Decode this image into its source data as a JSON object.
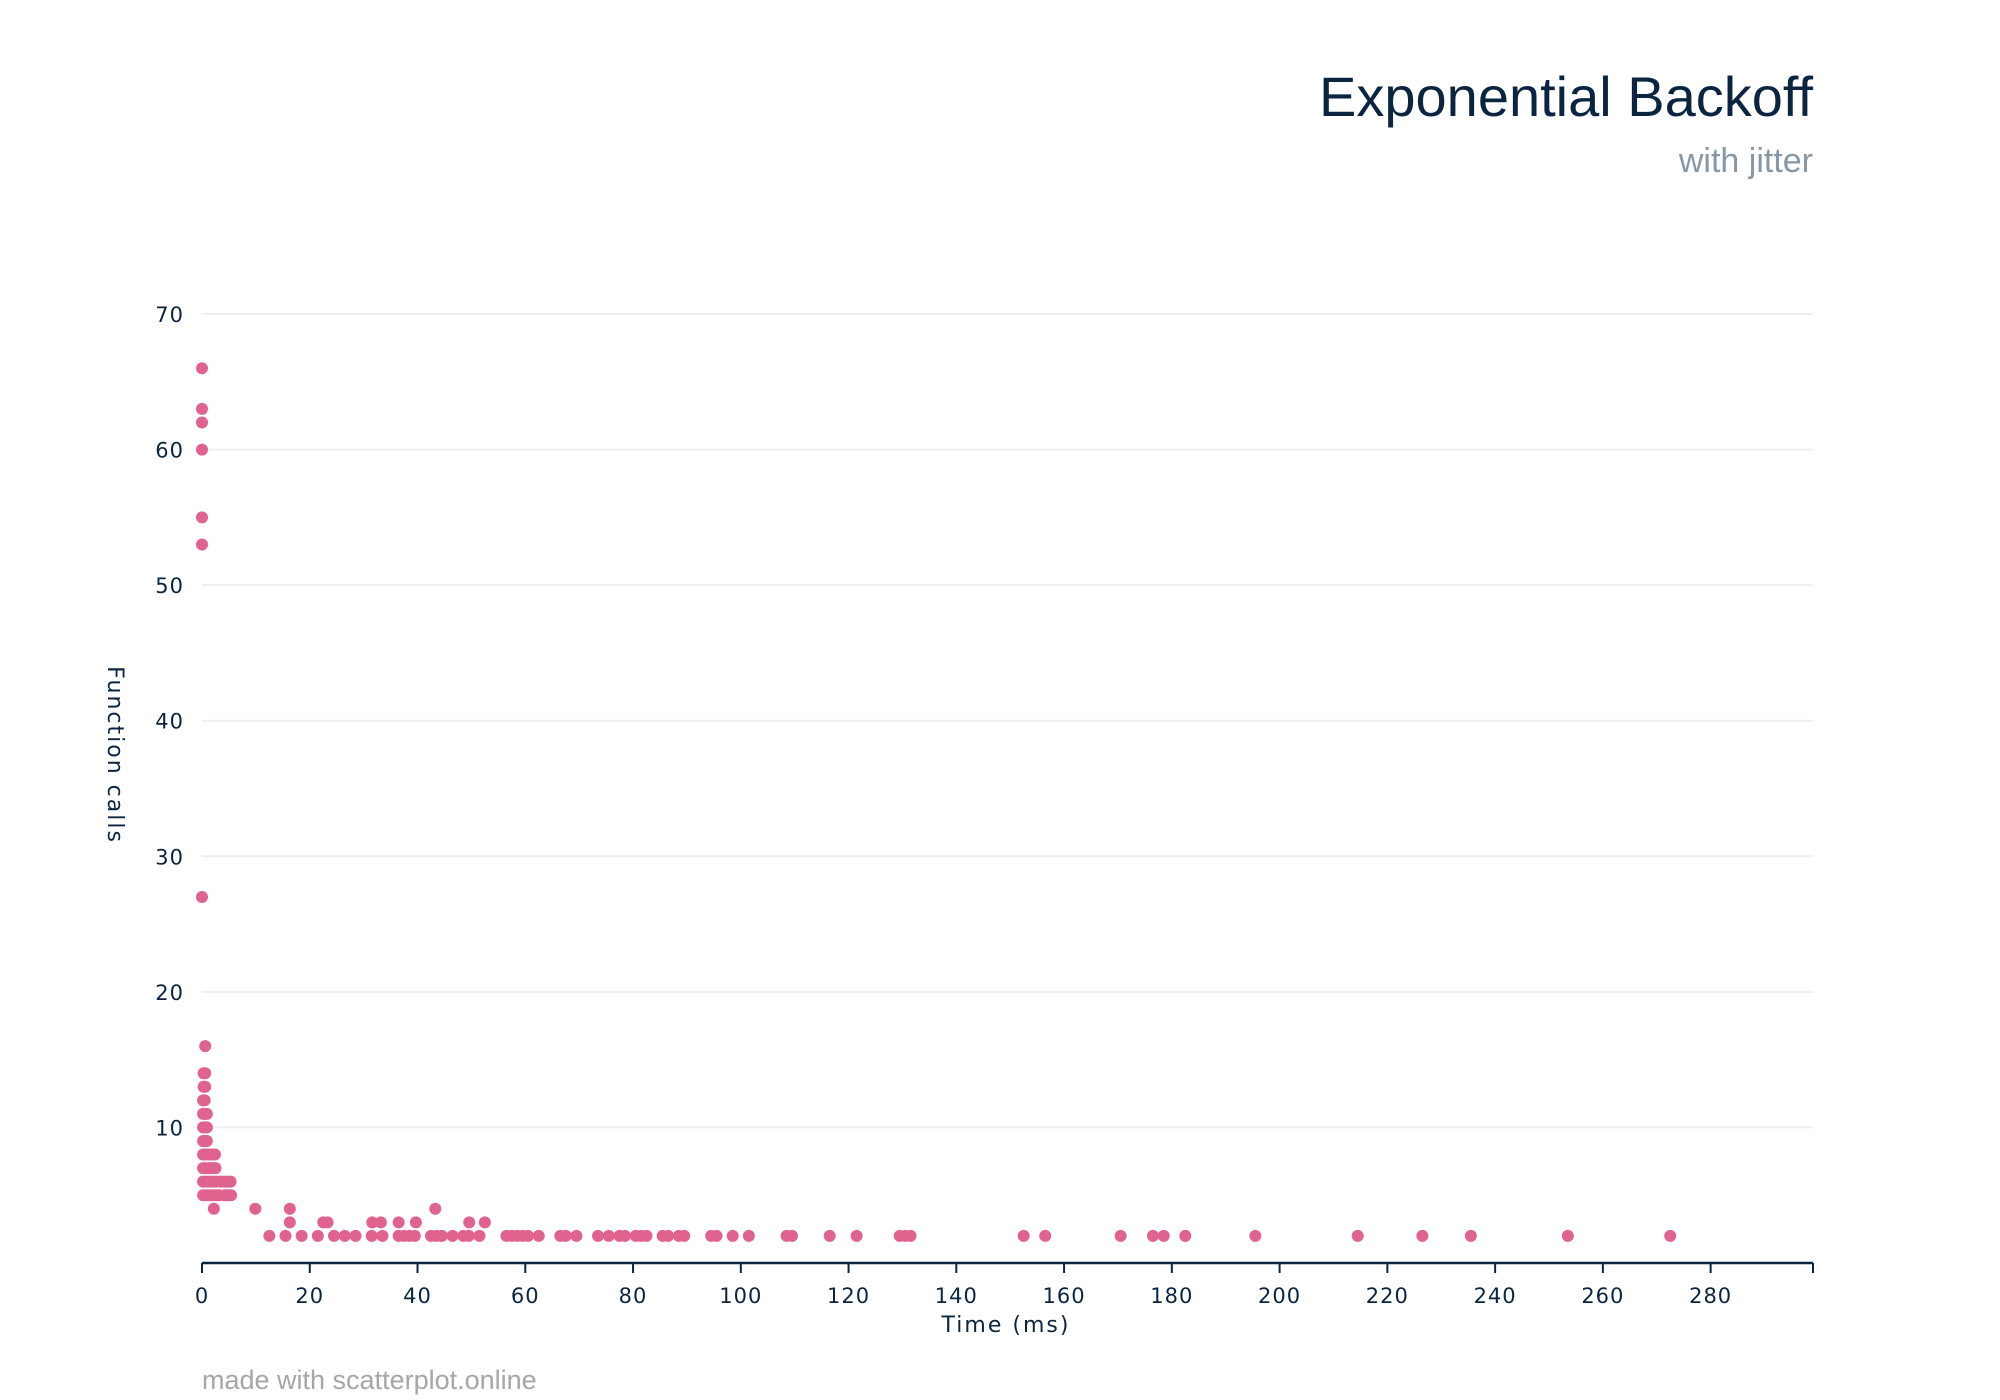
{
  "watermark": "made with scatterplot.online",
  "colors": {
    "point": "#e0628f",
    "title": "#0b2540",
    "subtitle": "#8797a4",
    "grid": "#eceff3",
    "axis": "#0b2540",
    "watermark": "#a6a6a6"
  },
  "chart_data": {
    "type": "scatter",
    "title": "Exponential Backoff",
    "subtitle": "with jitter",
    "xlabel": "Time (ms)",
    "ylabel": "Function calls",
    "xlim": [
      0,
      299
    ],
    "ylim": [
      0,
      70
    ],
    "xticks": [
      0,
      20,
      40,
      60,
      80,
      100,
      120,
      140,
      160,
      180,
      200,
      220,
      240,
      260,
      280
    ],
    "yticks": [
      10,
      20,
      30,
      40,
      50,
      60,
      70
    ],
    "grid": true,
    "legend": "none",
    "points": [
      {
        "x": 0,
        "y": 66
      },
      {
        "x": 0,
        "y": 63
      },
      {
        "x": 0,
        "y": 62
      },
      {
        "x": 0,
        "y": 60
      },
      {
        "x": 0,
        "y": 55
      },
      {
        "x": 0,
        "y": 53
      },
      {
        "x": 0,
        "y": 27
      },
      {
        "x": 0.6,
        "y": 16
      },
      {
        "x": 0.3,
        "y": 14
      },
      {
        "x": 0.6,
        "y": 14
      },
      {
        "x": 0.3,
        "y": 13
      },
      {
        "x": 0.6,
        "y": 13
      },
      {
        "x": 0.2,
        "y": 12
      },
      {
        "x": 0.5,
        "y": 12
      },
      {
        "x": 0.2,
        "y": 11
      },
      {
        "x": 0.5,
        "y": 11
      },
      {
        "x": 0.9,
        "y": 11
      },
      {
        "x": 0.2,
        "y": 10
      },
      {
        "x": 0.5,
        "y": 10
      },
      {
        "x": 0.9,
        "y": 10
      },
      {
        "x": 0.2,
        "y": 9
      },
      {
        "x": 0.5,
        "y": 9
      },
      {
        "x": 0.9,
        "y": 9
      },
      {
        "x": 0.2,
        "y": 8
      },
      {
        "x": 0.6,
        "y": 8
      },
      {
        "x": 1.2,
        "y": 8
      },
      {
        "x": 1.8,
        "y": 8
      },
      {
        "x": 2.4,
        "y": 8
      },
      {
        "x": 0.2,
        "y": 7
      },
      {
        "x": 0.7,
        "y": 7
      },
      {
        "x": 1.3,
        "y": 7
      },
      {
        "x": 1.9,
        "y": 7
      },
      {
        "x": 2.5,
        "y": 7
      },
      {
        "x": 0.2,
        "y": 6
      },
      {
        "x": 0.8,
        "y": 6
      },
      {
        "x": 1.4,
        "y": 6
      },
      {
        "x": 2.0,
        "y": 6
      },
      {
        "x": 2.6,
        "y": 6
      },
      {
        "x": 3.5,
        "y": 6
      },
      {
        "x": 4.1,
        "y": 6
      },
      {
        "x": 4.7,
        "y": 6
      },
      {
        "x": 5.3,
        "y": 6
      },
      {
        "x": 0.2,
        "y": 5
      },
      {
        "x": 0.8,
        "y": 5
      },
      {
        "x": 1.4,
        "y": 5
      },
      {
        "x": 2.0,
        "y": 5
      },
      {
        "x": 2.6,
        "y": 5
      },
      {
        "x": 3.2,
        "y": 5
      },
      {
        "x": 4.2,
        "y": 5
      },
      {
        "x": 4.8,
        "y": 5
      },
      {
        "x": 5.4,
        "y": 5
      },
      {
        "x": 16.3,
        "y": 4
      },
      {
        "x": 43.3,
        "y": 4
      },
      {
        "x": 2.2,
        "y": 4
      },
      {
        "x": 9.9,
        "y": 4
      },
      {
        "x": 16.3,
        "y": 3
      },
      {
        "x": 22.5,
        "y": 3
      },
      {
        "x": 23.3,
        "y": 3
      },
      {
        "x": 31.6,
        "y": 3
      },
      {
        "x": 33.2,
        "y": 3
      },
      {
        "x": 36.5,
        "y": 3
      },
      {
        "x": 39.7,
        "y": 3
      },
      {
        "x": 49.6,
        "y": 3
      },
      {
        "x": 52.5,
        "y": 3
      },
      {
        "x": 12.5,
        "y": 2
      },
      {
        "x": 15.5,
        "y": 2
      },
      {
        "x": 18.5,
        "y": 2
      },
      {
        "x": 21.5,
        "y": 2
      },
      {
        "x": 24.5,
        "y": 2
      },
      {
        "x": 26.5,
        "y": 2
      },
      {
        "x": 28.5,
        "y": 2
      },
      {
        "x": 31.5,
        "y": 2
      },
      {
        "x": 33.5,
        "y": 2
      },
      {
        "x": 36.5,
        "y": 2
      },
      {
        "x": 37.5,
        "y": 2
      },
      {
        "x": 38.5,
        "y": 2
      },
      {
        "x": 39.5,
        "y": 2
      },
      {
        "x": 42.5,
        "y": 2
      },
      {
        "x": 43.5,
        "y": 2
      },
      {
        "x": 44.5,
        "y": 2
      },
      {
        "x": 46.5,
        "y": 2
      },
      {
        "x": 48.5,
        "y": 2
      },
      {
        "x": 49.5,
        "y": 2
      },
      {
        "x": 51.5,
        "y": 2
      },
      {
        "x": 56.5,
        "y": 2
      },
      {
        "x": 57.5,
        "y": 2
      },
      {
        "x": 58.5,
        "y": 2
      },
      {
        "x": 59.5,
        "y": 2
      },
      {
        "x": 60.5,
        "y": 2
      },
      {
        "x": 62.5,
        "y": 2
      },
      {
        "x": 66.5,
        "y": 2
      },
      {
        "x": 67.5,
        "y": 2
      },
      {
        "x": 69.5,
        "y": 2
      },
      {
        "x": 73.5,
        "y": 2
      },
      {
        "x": 75.5,
        "y": 2
      },
      {
        "x": 77.5,
        "y": 2
      },
      {
        "x": 78.5,
        "y": 2
      },
      {
        "x": 80.5,
        "y": 2
      },
      {
        "x": 81.5,
        "y": 2
      },
      {
        "x": 82.5,
        "y": 2
      },
      {
        "x": 85.5,
        "y": 2
      },
      {
        "x": 86.5,
        "y": 2
      },
      {
        "x": 88.5,
        "y": 2
      },
      {
        "x": 89.5,
        "y": 2
      },
      {
        "x": 94.5,
        "y": 2
      },
      {
        "x": 95.5,
        "y": 2
      },
      {
        "x": 98.5,
        "y": 2
      },
      {
        "x": 101.5,
        "y": 2
      },
      {
        "x": 108.5,
        "y": 2
      },
      {
        "x": 109.5,
        "y": 2
      },
      {
        "x": 116.5,
        "y": 2
      },
      {
        "x": 121.5,
        "y": 2
      },
      {
        "x": 129.5,
        "y": 2
      },
      {
        "x": 130.5,
        "y": 2
      },
      {
        "x": 131.5,
        "y": 2
      },
      {
        "x": 152.5,
        "y": 2
      },
      {
        "x": 156.5,
        "y": 2
      },
      {
        "x": 170.5,
        "y": 2
      },
      {
        "x": 176.5,
        "y": 2
      },
      {
        "x": 178.5,
        "y": 2
      },
      {
        "x": 182.5,
        "y": 2
      },
      {
        "x": 195.5,
        "y": 2
      },
      {
        "x": 214.5,
        "y": 2
      },
      {
        "x": 226.5,
        "y": 2
      },
      {
        "x": 235.5,
        "y": 2
      },
      {
        "x": 253.5,
        "y": 2
      },
      {
        "x": 272.5,
        "y": 2
      }
    ]
  }
}
